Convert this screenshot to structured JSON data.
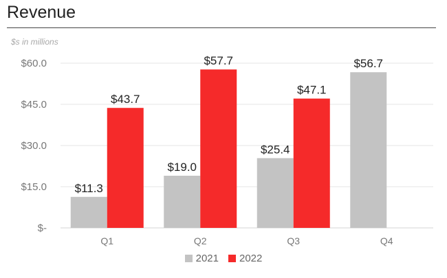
{
  "chart_data": {
    "type": "bar",
    "title": "Revenue",
    "subtitle": "$s in millions",
    "categories": [
      "Q1",
      "Q2",
      "Q3",
      "Q4"
    ],
    "series": [
      {
        "name": "2021",
        "color": "#c3c3c3",
        "values": [
          11.3,
          19.0,
          25.4,
          56.7
        ],
        "labels": [
          "$11.3",
          "$19.0",
          "$25.4",
          "$56.7"
        ]
      },
      {
        "name": "2022",
        "color": "#f52a2a",
        "values": [
          43.7,
          57.7,
          47.1,
          null
        ],
        "labels": [
          "$43.7",
          "$57.7",
          "$47.1",
          ""
        ]
      }
    ],
    "yticks": [
      {
        "value": 0,
        "label": "$-"
      },
      {
        "value": 15,
        "label": "$15.0"
      },
      {
        "value": 30,
        "label": "$30.0"
      },
      {
        "value": 45,
        "label": "$45.0"
      },
      {
        "value": 60,
        "label": "$60.0"
      }
    ],
    "ylim": [
      0,
      60
    ],
    "grid": true,
    "legend": "bottom"
  }
}
